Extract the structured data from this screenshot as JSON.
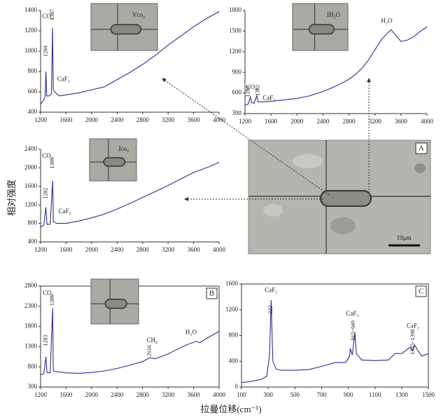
{
  "y_label": "相对强度",
  "x_label": "拉曼位移(cm⁻¹)",
  "micrograph": {
    "label": "A",
    "scale": "10μm"
  },
  "chart_data": [
    {
      "type": "line",
      "color": "#2b2f8f",
      "inset_label": "Vco₂",
      "annotations": [
        "CO₂",
        "1284",
        "1387",
        "CaF₂"
      ],
      "x": [
        1200,
        1250,
        1270,
        1284,
        1295,
        1330,
        1370,
        1387,
        1400,
        1450,
        1500,
        1600,
        1800,
        2000,
        2200,
        2400,
        2600,
        2800,
        3000,
        3200,
        3400,
        3600,
        3800,
        4000
      ],
      "values": [
        480,
        520,
        560,
        800,
        560,
        560,
        580,
        1230,
        620,
        580,
        560,
        570,
        590,
        620,
        650,
        720,
        790,
        870,
        960,
        1060,
        1150,
        1240,
        1320,
        1390
      ],
      "xlim": [
        1200,
        4000
      ],
      "xticks": [
        1200,
        1600,
        2000,
        2400,
        2800,
        3200,
        3600,
        4000
      ],
      "ylim": [
        400,
        1400
      ],
      "yticks": [
        400,
        600,
        800,
        1000,
        1200,
        1400
      ]
    },
    {
      "type": "line",
      "color": "#2b2f8f",
      "inset_label": "IH₂O",
      "annotations": [
        "CO₂",
        "1284",
        "1382",
        "CaF₂",
        "H₂O"
      ],
      "x": [
        1200,
        1250,
        1284,
        1300,
        1340,
        1382,
        1400,
        1450,
        1600,
        1800,
        2000,
        2200,
        2400,
        2600,
        2800,
        2900,
        3000,
        3100,
        3200,
        3300,
        3400,
        3450,
        3500,
        3600,
        3700,
        3800,
        3900,
        4000
      ],
      "values": [
        420,
        440,
        540,
        460,
        450,
        560,
        470,
        470,
        480,
        500,
        520,
        560,
        620,
        700,
        800,
        870,
        960,
        1080,
        1230,
        1380,
        1480,
        1520,
        1460,
        1350,
        1370,
        1420,
        1500,
        1560
      ],
      "xlim": [
        1200,
        4000
      ],
      "xticks": [
        1200,
        1600,
        2000,
        2400,
        2800,
        3200,
        3600,
        4000
      ],
      "ylim": [
        300,
        1800
      ],
      "yticks": [
        300,
        600,
        900,
        1200,
        1500,
        1800
      ]
    },
    {
      "type": "line",
      "color": "#2b2f8f",
      "inset_label": "Ico₂",
      "annotations": [
        "CO₂",
        "1282",
        "1389",
        "CaF₂"
      ],
      "x": [
        1200,
        1250,
        1282,
        1300,
        1350,
        1389,
        1400,
        1450,
        1600,
        1800,
        2000,
        2200,
        2400,
        2600,
        2800,
        3000,
        3200,
        3400,
        3600,
        3800,
        4000
      ],
      "values": [
        720,
        760,
        1150,
        780,
        780,
        1720,
        840,
        800,
        800,
        850,
        920,
        1000,
        1110,
        1230,
        1360,
        1490,
        1620,
        1760,
        1900,
        2000,
        2120
      ],
      "xlim": [
        1200,
        4000
      ],
      "xticks": [
        1200,
        1600,
        2000,
        2400,
        2800,
        3200,
        3600,
        4000
      ],
      "ylim": [
        400,
        2400
      ],
      "yticks": [
        400,
        800,
        1200,
        1600,
        2000,
        2400
      ]
    },
    {
      "type": "line",
      "color": "#2b2f8f",
      "panel_label": "B",
      "annotations": [
        "CO₂",
        "1283",
        "1389",
        "CH₄",
        "2916",
        "H₂O"
      ],
      "x": [
        1200,
        1250,
        1283,
        1300,
        1350,
        1389,
        1400,
        1450,
        1600,
        1800,
        2000,
        2200,
        2400,
        2600,
        2800,
        2916,
        3000,
        3200,
        3400,
        3500,
        3640,
        3700,
        3800,
        4000
      ],
      "values": [
        600,
        630,
        1050,
        660,
        650,
        2250,
        700,
        680,
        650,
        640,
        660,
        700,
        760,
        840,
        930,
        1030,
        1000,
        1120,
        1280,
        1350,
        1430,
        1400,
        1500,
        1680
      ],
      "xlim": [
        1200,
        4000
      ],
      "xticks": [
        1200,
        1600,
        2000,
        2400,
        2800,
        3200,
        3600,
        4000
      ],
      "ylim": [
        300,
        2800
      ],
      "yticks": [
        300,
        800,
        1300,
        1800,
        2300,
        2800
      ]
    },
    {
      "type": "line",
      "color": "#2b2f8f",
      "panel_label": "C",
      "annotations": [
        "CaF₂",
        "322",
        "CaF₂",
        "915~949",
        "CaF₂",
        "1365~1398"
      ],
      "x": [
        100,
        150,
        200,
        250,
        290,
        310,
        322,
        335,
        360,
        400,
        500,
        600,
        700,
        800,
        880,
        910,
        915,
        930,
        949,
        960,
        1000,
        1100,
        1200,
        1250,
        1300,
        1365,
        1380,
        1398,
        1420,
        1450,
        1500
      ],
      "values": [
        70,
        80,
        100,
        120,
        170,
        500,
        1350,
        400,
        280,
        260,
        260,
        270,
        320,
        380,
        380,
        480,
        600,
        500,
        850,
        520,
        420,
        410,
        420,
        520,
        520,
        620,
        560,
        650,
        570,
        480,
        520
      ],
      "xlim": [
        100,
        1500
      ],
      "xticks": [
        100,
        300,
        500,
        700,
        900,
        1100,
        1300,
        1500
      ],
      "ylim": [
        0,
        1600
      ],
      "yticks": [
        0,
        400,
        800,
        1200,
        1600
      ]
    }
  ]
}
